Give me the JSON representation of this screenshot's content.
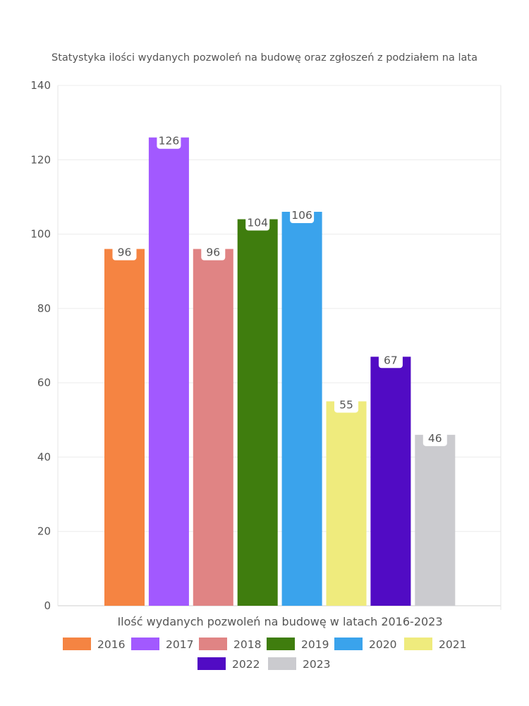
{
  "chart_data": {
    "type": "bar",
    "title": "Statystyka ilości wydanych pozwoleń na budowę oraz zgłoszeń z podziałem na lata",
    "xlabel": "Ilość wydanych pozwoleń na budowę w latach 2016-2023",
    "ylabel": "",
    "ylim": [
      0,
      140
    ],
    "yticks": [
      0,
      20,
      40,
      60,
      80,
      100,
      120,
      140
    ],
    "grid": true,
    "legend_position": "bottom",
    "series": [
      {
        "name": "2016",
        "values": [
          96
        ],
        "color": "#F58442"
      },
      {
        "name": "2017",
        "values": [
          126
        ],
        "color": "#A259FF"
      },
      {
        "name": "2018",
        "values": [
          96
        ],
        "color": "#E08484"
      },
      {
        "name": "2019",
        "values": [
          104
        ],
        "color": "#3F7D0E"
      },
      {
        "name": "2020",
        "values": [
          106
        ],
        "color": "#3AA3EC"
      },
      {
        "name": "2021",
        "values": [
          55
        ],
        "color": "#EFEB7D"
      },
      {
        "name": "2022",
        "values": [
          67
        ],
        "color": "#510BC4"
      },
      {
        "name": "2023",
        "values": [
          46
        ],
        "color": "#CBCBCF"
      }
    ],
    "data_labels": [
      "96",
      "126",
      "96",
      "104",
      "106",
      "55",
      "67",
      "46"
    ]
  }
}
